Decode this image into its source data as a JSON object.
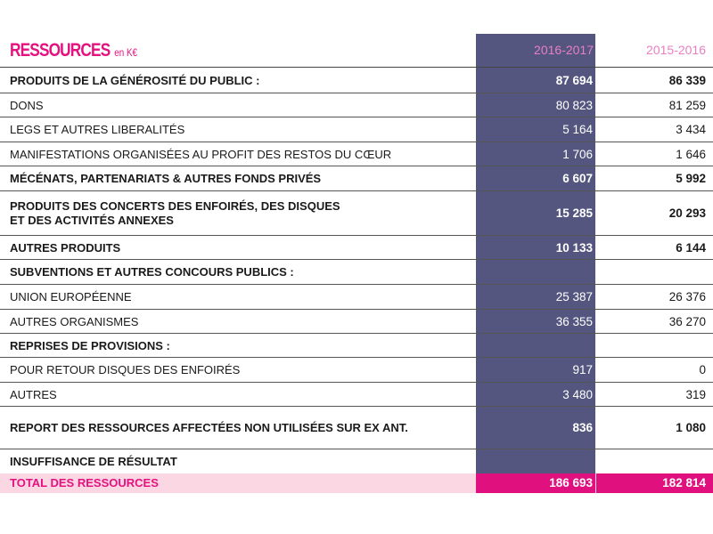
{
  "header": {
    "title": "RESSOURCES",
    "unit": "en K€",
    "year1": "2016-2017",
    "year2": "2015-2016"
  },
  "rows": [
    {
      "label": "PRODUITS DE LA GÉNÉROSITÉ DU PUBLIC :",
      "v1": "87 694",
      "v2": "86 339",
      "bold": true
    },
    {
      "label": "DONS",
      "v1": "80 823",
      "v2": "81 259",
      "bold": false
    },
    {
      "label": "LEGS ET AUTRES LIBERALITÉS",
      "v1": "5 164",
      "v2": "3 434",
      "bold": false
    },
    {
      "label": "MANIFESTATIONS ORGANISÉES AU PROFIT DES RESTOS DU CŒUR",
      "v1": "1 706",
      "v2": "1 646",
      "bold": false
    },
    {
      "label": "MÉCÉNATS, PARTENARIATS & AUTRES FONDS PRIVÉS",
      "v1": "6 607",
      "v2": "5 992",
      "bold": true
    },
    {
      "label": "PRODUITS DES CONCERTS DES ENFOIRÉS, DES DISQUES",
      "label2": "ET DES ACTIVITÉS ANNEXES",
      "v1": "15 285",
      "v2": "20 293",
      "bold": true
    },
    {
      "label": "AUTRES PRODUITS",
      "v1": "10 133",
      "v2": "6 144",
      "bold": true
    },
    {
      "label": "SUBVENTIONS ET AUTRES CONCOURS PUBLICS :",
      "v1": "",
      "v2": "",
      "bold": true
    },
    {
      "label": "UNION EUROPÉENNE",
      "v1": "25 387",
      "v2": "26 376",
      "bold": false
    },
    {
      "label": "AUTRES ORGANISMES",
      "v1": "36 355",
      "v2": "36 270",
      "bold": false
    },
    {
      "label": "REPRISES DE PROVISIONS :",
      "v1": "",
      "v2": "",
      "bold": true
    },
    {
      "label": "POUR RETOUR DISQUES DES ENFOIRÉS",
      "v1": "917",
      "v2": "0",
      "bold": false
    },
    {
      "label": "AUTRES",
      "v1": "3 480",
      "v2": "319",
      "bold": false
    },
    {
      "label": "REPORT DES RESSOURCES AFFECTÉES NON UTILISÉES SUR EX ANT.",
      "v1": "836",
      "v2": "1 080",
      "bold": true
    },
    {
      "label": "INSUFFISANCE DE RÉSULTAT",
      "v1": "",
      "v2": "",
      "bold": true
    }
  ],
  "total": {
    "label": "TOTAL DES RESSOURCES",
    "v1": "186 693",
    "v2": "182 814"
  },
  "colors": {
    "accent": "#e4117f",
    "column_band": "#545680",
    "total_bg": "#fbd7e4"
  }
}
